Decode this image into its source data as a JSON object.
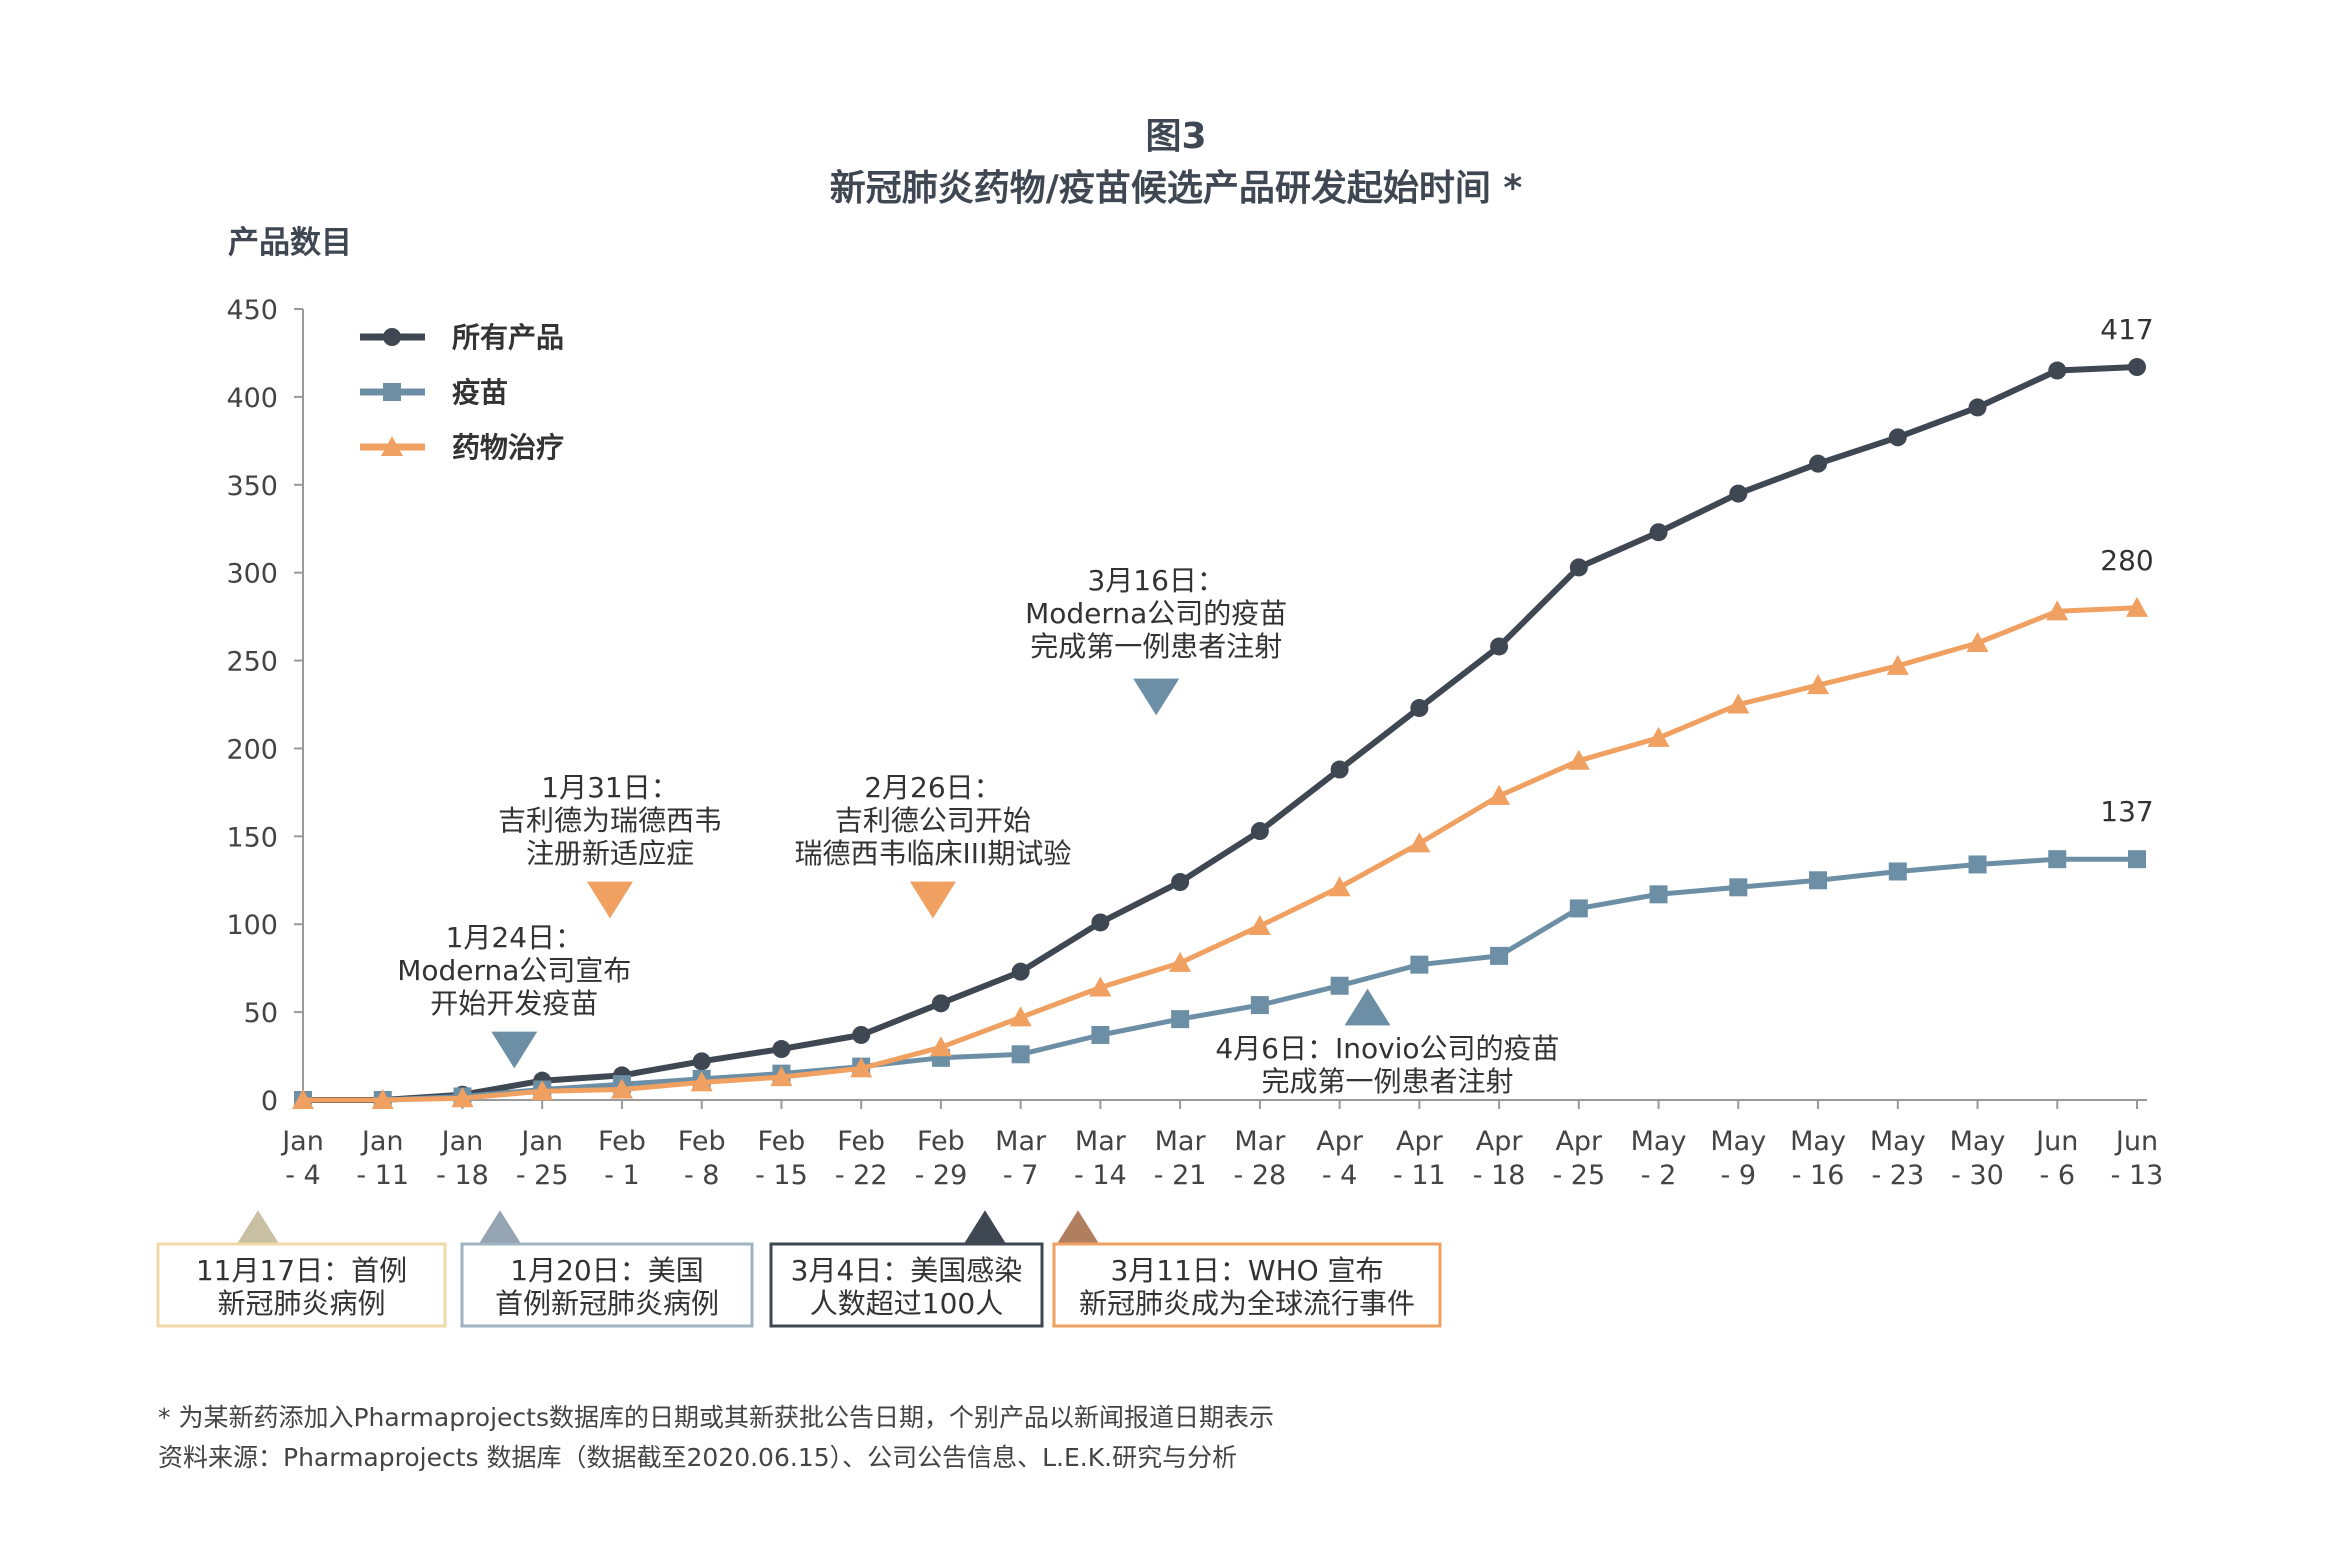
{
  "chart_data": {
    "type": "line",
    "title_line1": "图3",
    "title_line2": "新冠肺炎药物/疫苗候选产品研发起始时间 *",
    "ylabel": "产品数目",
    "ylim": [
      0,
      450
    ],
    "yticks": [
      0,
      50,
      100,
      150,
      200,
      250,
      300,
      350,
      400,
      450
    ],
    "categories": [
      [
        "Jan",
        "- 4"
      ],
      [
        "Jan",
        "- 11"
      ],
      [
        "Jan",
        "- 18"
      ],
      [
        "Jan",
        "- 25"
      ],
      [
        "Feb",
        "- 1"
      ],
      [
        "Feb",
        "- 8"
      ],
      [
        "Feb",
        "- 15"
      ],
      [
        "Feb",
        "- 22"
      ],
      [
        "Feb",
        "- 29"
      ],
      [
        "Mar",
        "- 7"
      ],
      [
        "Mar",
        "- 14"
      ],
      [
        "Mar",
        "- 21"
      ],
      [
        "Mar",
        "- 28"
      ],
      [
        "Apr",
        "- 4"
      ],
      [
        "Apr",
        "- 11"
      ],
      [
        "Apr",
        "- 18"
      ],
      [
        "Apr",
        "- 25"
      ],
      [
        "May",
        "- 2"
      ],
      [
        "May",
        "- 9"
      ],
      [
        "May",
        "- 16"
      ],
      [
        "May",
        "- 23"
      ],
      [
        "May",
        "- 30"
      ],
      [
        "Jun",
        "- 6"
      ],
      [
        "Jun",
        "- 13"
      ]
    ],
    "series": [
      {
        "name": "所有产品",
        "color": "#3f4752",
        "marker": "circle",
        "values": [
          0,
          0,
          3,
          11,
          14,
          22,
          29,
          37,
          55,
          73,
          101,
          124,
          153,
          188,
          223,
          258,
          303,
          323,
          345,
          362,
          377,
          394,
          415,
          417
        ]
      },
      {
        "name": "疫苗",
        "color": "#6d8fa6",
        "marker": "square",
        "values": [
          0,
          0,
          2,
          6,
          9,
          12,
          15,
          19,
          24,
          26,
          37,
          46,
          54,
          65,
          77,
          82,
          109,
          117,
          121,
          125,
          130,
          134,
          137,
          137
        ]
      },
      {
        "name": "药物治疗",
        "color": "#f0a060",
        "marker": "triangle",
        "values": [
          0,
          0,
          1,
          5,
          6,
          10,
          13,
          18,
          30,
          47,
          64,
          78,
          99,
          121,
          146,
          173,
          193,
          206,
          225,
          236,
          247,
          260,
          278,
          280
        ]
      }
    ],
    "end_labels": [
      "417",
      "137",
      "280"
    ],
    "legend_position": "top-left",
    "annotations": [
      {
        "lines": [
          "1月24日：",
          "Moderna公司宣布",
          "开始开发疫苗"
        ],
        "marker": "down-triangle",
        "color": "#6d8fa6"
      },
      {
        "lines": [
          "1月31日：",
          "吉利德为瑞德西韦",
          "注册新适应症"
        ],
        "marker": "down-triangle",
        "color": "#f0a060"
      },
      {
        "lines": [
          "2月26日：",
          "吉利德公司开始",
          "瑞德西韦临床III期试验"
        ],
        "marker": "down-triangle",
        "color": "#f0a060"
      },
      {
        "lines": [
          "3月16日：",
          "Moderna公司的疫苗",
          "完成第一例患者注射"
        ],
        "marker": "down-triangle",
        "color": "#6d8fa6"
      },
      {
        "lines": [
          "4月6日：Inovio公司的疫苗",
          "完成第一例患者注射"
        ],
        "marker": "up-triangle",
        "color": "#6d8fa6"
      }
    ],
    "event_boxes": [
      {
        "lines": [
          "11月17日：首例",
          "新冠肺炎病例"
        ],
        "color": "#f0d9a8",
        "marker_color": "#c9c0a4"
      },
      {
        "lines": [
          "1月20日：美国",
          "首例新冠肺炎病例"
        ],
        "color": "#9fb3c2",
        "marker_color": "#94a4b2"
      },
      {
        "lines": [
          "3月4日：美国感染",
          "人数超过100人"
        ],
        "color": "#3f4752",
        "marker_color": "#3f4752"
      },
      {
        "lines": [
          "3月11日：WHO 宣布",
          "新冠肺炎成为全球流行事件"
        ],
        "color": "#f0a060",
        "marker_color": "#b07f60"
      }
    ],
    "footnote": "* 为某新药添加入Pharmaprojects数据库的日期或其新获批公告日期，个别产品以新闻报道日期表示",
    "source": "资料来源：Pharmaprojects 数据库（数据截至2020.06.15）、公司公告信息、L.E.K.研究与分析",
    "grid": false
  }
}
